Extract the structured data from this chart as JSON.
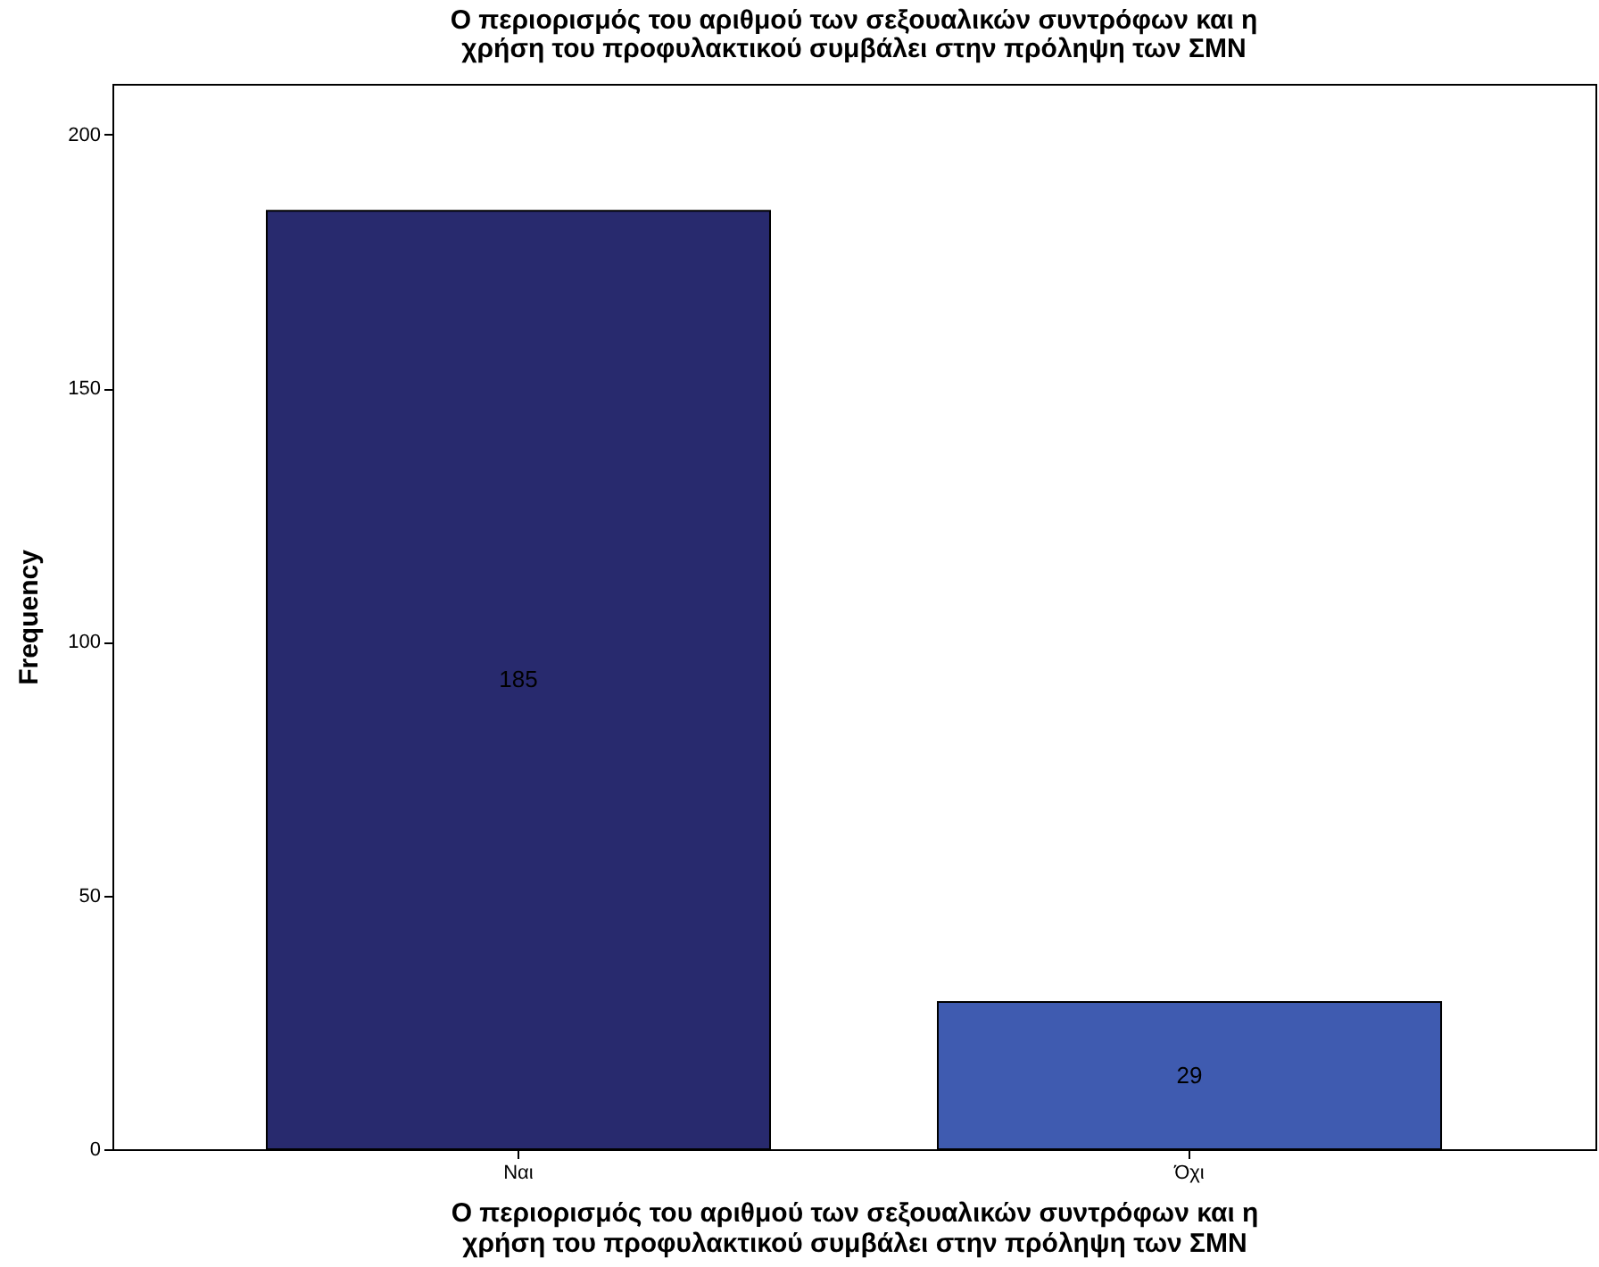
{
  "chart_data": {
    "type": "bar",
    "title": "Ο περιορισμός του αριθμού των σεξουαλικών συντρόφων και η χρήση του προφυλακτικού συμβάλει στην πρόληψη των ΣΜΝ",
    "xlabel": "Ο περιορισμός του αριθμού των σεξουαλικών συντρόφων και η χρήση του προφυλακτικού συμβάλει στην πρόληψη των ΣΜΝ",
    "ylabel": "Frequency",
    "categories": [
      "Ναι",
      "Όχι"
    ],
    "values": [
      185,
      29
    ],
    "colors": [
      "#282a6e",
      "#3f5bb0"
    ],
    "ylim": [
      0,
      210
    ],
    "yticks": [
      0,
      50,
      100,
      150,
      200
    ],
    "grid": false,
    "data_labels": true
  }
}
